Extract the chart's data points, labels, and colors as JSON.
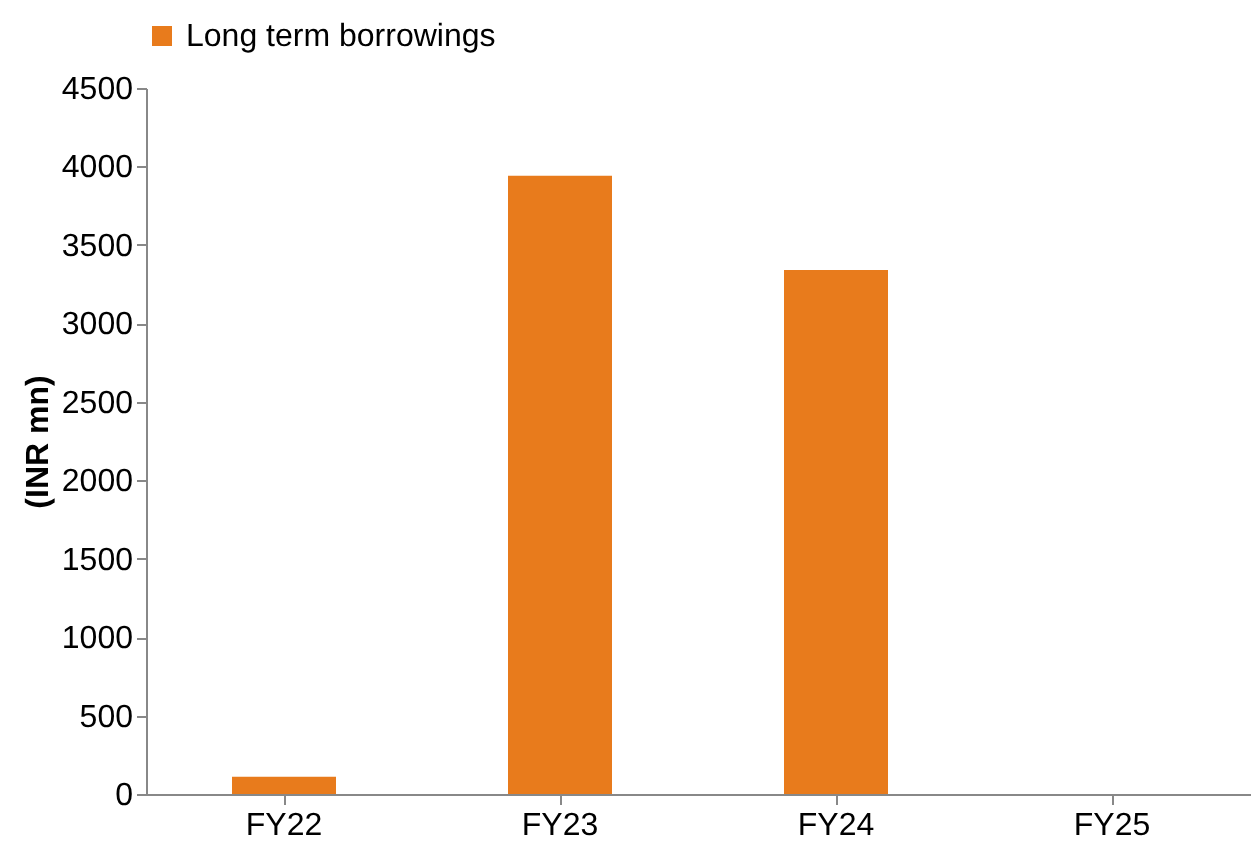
{
  "chart_data": {
    "type": "bar",
    "ylabel": "(INR mn)",
    "categories": [
      "FY22",
      "FY23",
      "FY24",
      "FY25"
    ],
    "series": [
      {
        "name": "Long term borrowings",
        "color": "#e87b1c",
        "values": [
          110,
          3940,
          3340,
          0
        ]
      }
    ],
    "ylim": [
      0,
      4500
    ],
    "yticks": [
      0,
      500,
      1000,
      1500,
      2000,
      2500,
      3000,
      3500,
      4000,
      4500
    ],
    "grid": false,
    "legend": "top"
  }
}
